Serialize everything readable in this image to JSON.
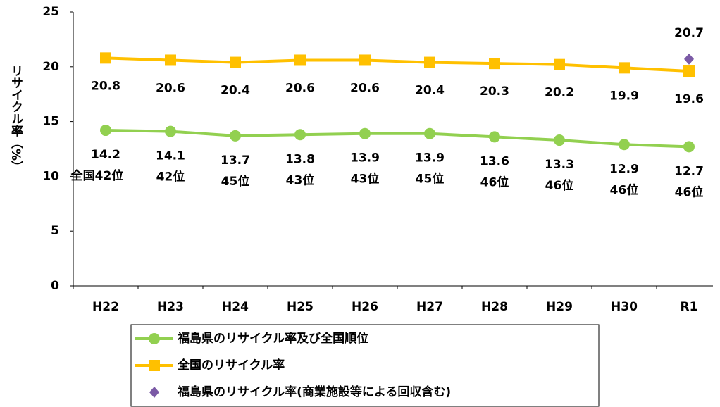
{
  "chart_data": {
    "type": "line",
    "ylabel": "リサイクル率（%）",
    "categories": [
      "H22",
      "H23",
      "H24",
      "H25",
      "H26",
      "H27",
      "H28",
      "H29",
      "H30",
      "R1"
    ],
    "series": [
      {
        "name": "福島県のリサイクル率及び全国順位",
        "color": "#92d050",
        "marker": "circle",
        "values": [
          14.2,
          14.1,
          13.7,
          13.8,
          13.9,
          13.9,
          13.6,
          13.3,
          12.9,
          12.7
        ],
        "rank_labels": [
          "全国42位",
          "42位",
          "45位",
          "43位",
          "43位",
          "45位",
          "46位",
          "46位",
          "46位",
          "46位"
        ]
      },
      {
        "name": "全国のリサイクル率",
        "color": "#ffc000",
        "marker": "square",
        "values": [
          20.8,
          20.6,
          20.4,
          20.6,
          20.6,
          20.4,
          20.3,
          20.2,
          19.9,
          19.6
        ]
      },
      {
        "name": "福島県のリサイクル率(商業施設等による回収含む)",
        "color": "#7b5aa6",
        "marker": "diamond",
        "values": [
          null,
          null,
          null,
          null,
          null,
          null,
          null,
          null,
          null,
          20.7
        ]
      }
    ],
    "ylim": [
      0,
      25
    ],
    "yticks": [
      0,
      5,
      10,
      15,
      20,
      25
    ]
  }
}
